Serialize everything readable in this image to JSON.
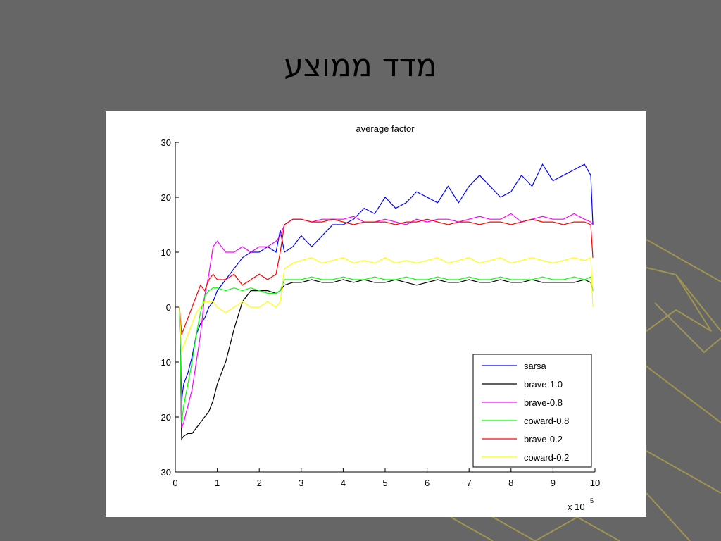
{
  "slide_title": "מדד ממוצע",
  "chart_data": {
    "type": "line",
    "title": "average factor",
    "x_scale_label": {
      "base": "x 10",
      "exponent": "5"
    },
    "x": [
      0.1,
      0.15,
      0.2,
      0.3,
      0.4,
      0.5,
      0.6,
      0.7,
      0.8,
      0.9,
      1.0,
      1.2,
      1.4,
      1.6,
      1.8,
      2.0,
      2.2,
      2.4,
      2.5,
      2.6,
      2.8,
      3.0,
      3.25,
      3.5,
      3.75,
      4.0,
      4.25,
      4.5,
      4.75,
      5.0,
      5.25,
      5.5,
      5.75,
      6.0,
      6.25,
      6.5,
      6.75,
      7.0,
      7.25,
      7.5,
      7.75,
      8.0,
      8.25,
      8.5,
      8.75,
      9.0,
      9.25,
      9.5,
      9.75,
      9.9,
      9.95
    ],
    "series": [
      {
        "name": "sarsa",
        "color": "#0000ff",
        "values": [
          0,
          -17,
          -14,
          -12,
          -9,
          -5,
          -3,
          -2,
          0,
          1,
          3,
          5,
          7,
          9,
          10,
          10,
          11,
          10,
          14,
          10,
          11,
          13,
          11,
          13,
          15,
          15,
          16,
          18,
          17,
          20,
          18,
          19,
          21,
          20,
          19,
          22,
          19,
          22,
          24,
          22,
          20,
          21,
          24,
          22,
          26,
          23,
          24,
          25,
          26,
          24,
          15
        ]
      },
      {
        "name": "brave-1.0",
        "color": "#000000",
        "values": [
          0,
          -24,
          -23.5,
          -23,
          -23,
          -22,
          -21,
          -20,
          -19,
          -17,
          -14,
          -10,
          -4,
          1,
          3,
          3,
          3,
          2.5,
          3,
          4,
          4.5,
          4.5,
          5,
          4.5,
          4.5,
          5,
          4.5,
          5,
          4.5,
          4.5,
          5,
          4.5,
          4,
          4.5,
          5,
          4.5,
          4.5,
          5,
          4.5,
          4.5,
          5,
          4.5,
          4.5,
          5,
          4.5,
          4.5,
          4.5,
          4.5,
          5,
          4.5,
          3
        ]
      },
      {
        "name": "brave-0.8",
        "color": "#ff00ff",
        "values": [
          0,
          -22,
          -21,
          -18,
          -15,
          -10,
          -5,
          2,
          6,
          11,
          12,
          10,
          10,
          11,
          10,
          11,
          11,
          12,
          13,
          15,
          16,
          16,
          15.5,
          16,
          16,
          16,
          16.5,
          15.5,
          15.5,
          16,
          15.5,
          15,
          16,
          15.5,
          16,
          16,
          15.5,
          16,
          16.5,
          16,
          16,
          17,
          15.5,
          16,
          16.5,
          16,
          16,
          17,
          16,
          15.5,
          15
        ]
      },
      {
        "name": "coward-0.8",
        "color": "#00ff00",
        "values": [
          0,
          -21,
          -18,
          -14,
          -10,
          -5,
          -1,
          2,
          3,
          3.5,
          3.5,
          3,
          3.5,
          3,
          3.5,
          3,
          2.5,
          2.5,
          3,
          5,
          5,
          5,
          5.5,
          5,
          5,
          5.5,
          5,
          5,
          5.5,
          5,
          5,
          5.5,
          5,
          5,
          5.5,
          5,
          5,
          5.5,
          5,
          5,
          5.5,
          5,
          5,
          5,
          5.5,
          5,
          5,
          5.5,
          5,
          5.5,
          3
        ]
      },
      {
        "name": "brave-0.2",
        "color": "#ff0000",
        "values": [
          0,
          -5,
          -4,
          -2,
          0,
          2,
          4,
          3,
          5,
          6,
          5,
          5,
          6,
          4,
          5,
          6,
          5,
          6,
          10,
          15,
          16,
          16,
          15.5,
          15.5,
          16,
          15.5,
          15,
          15.5,
          15.5,
          15.5,
          15,
          15.5,
          15.5,
          16,
          15.5,
          15,
          15.5,
          15.5,
          15,
          15.5,
          15.5,
          15,
          15.5,
          16,
          15.5,
          15.5,
          15,
          15.5,
          15.5,
          15,
          9
        ]
      },
      {
        "name": "coward-0.2",
        "color": "#ffff00",
        "values": [
          0,
          -8,
          -7,
          -5,
          -3,
          -1,
          0,
          1,
          1,
          1,
          0,
          -1,
          0,
          1,
          0,
          0,
          1,
          0,
          1,
          7,
          8,
          8.5,
          9,
          8,
          8.5,
          9,
          8,
          8.5,
          8,
          9,
          8,
          8.5,
          8,
          8.5,
          9,
          8,
          8.5,
          9,
          8,
          8.5,
          9,
          8,
          8.5,
          9,
          8.5,
          8,
          8.5,
          9,
          8.5,
          9,
          0
        ]
      }
    ],
    "xlim": [
      0,
      10
    ],
    "ylim": [
      -30,
      30
    ],
    "xticks": [
      0,
      1,
      2,
      3,
      4,
      5,
      6,
      7,
      8,
      9,
      10
    ],
    "yticks": [
      -30,
      -20,
      -10,
      0,
      10,
      20,
      30
    ],
    "legend": "lower right"
  }
}
